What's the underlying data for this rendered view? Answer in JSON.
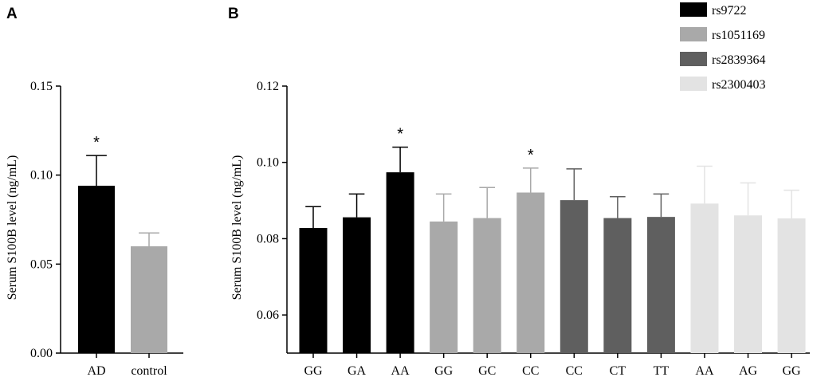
{
  "chart_data": [
    {
      "panel": "A",
      "type": "bar",
      "ylabel": "Serum S100B level (ng/mL)",
      "ylim": [
        0,
        0.15
      ],
      "yticks": [
        0,
        0.05,
        0.1,
        0.15
      ],
      "ytick_labels": [
        "0.00",
        "0.05",
        "0.10",
        "0.15"
      ],
      "categories": [
        "AD",
        "control"
      ],
      "values": [
        0.094,
        0.06
      ],
      "errors": [
        0.017,
        0.0075
      ],
      "colors": [
        "#000000",
        "#a9a9a9"
      ],
      "significance": [
        "*",
        ""
      ]
    },
    {
      "panel": "B",
      "type": "bar",
      "ylabel": "Serum S100B level (ng/mL)",
      "ylim": [
        0.05,
        0.12
      ],
      "yticks": [
        0.06,
        0.08,
        0.1,
        0.12
      ],
      "ytick_labels": [
        "0.06",
        "0.08",
        "0.10",
        "0.12"
      ],
      "categories": [
        "GG",
        "GA",
        "AA",
        "GG",
        "GC",
        "CC",
        "CC",
        "CT",
        "TT",
        "AA",
        "AG",
        "GG"
      ],
      "values": [
        0.0828,
        0.0856,
        0.0974,
        0.0845,
        0.0854,
        0.0921,
        0.0901,
        0.0854,
        0.0857,
        0.0892,
        0.0861,
        0.0853
      ],
      "errors": [
        0.0056,
        0.0061,
        0.0066,
        0.0072,
        0.008,
        0.0064,
        0.0082,
        0.0056,
        0.006,
        0.0098,
        0.0085,
        0.0074
      ],
      "series_index": [
        0,
        0,
        0,
        1,
        1,
        1,
        2,
        2,
        2,
        3,
        3,
        3
      ],
      "significance": [
        "",
        "",
        "*",
        "",
        "",
        "*",
        "",
        "",
        "",
        "",
        "",
        ""
      ],
      "legend": [
        {
          "name": "rs9722",
          "color": "#000000"
        },
        {
          "name": "rs1051169",
          "color": "#a9a9a9"
        },
        {
          "name": "rs2839364",
          "color": "#5f5f5f"
        },
        {
          "name": "rs2300403",
          "color": "#e3e3e3"
        }
      ]
    }
  ]
}
